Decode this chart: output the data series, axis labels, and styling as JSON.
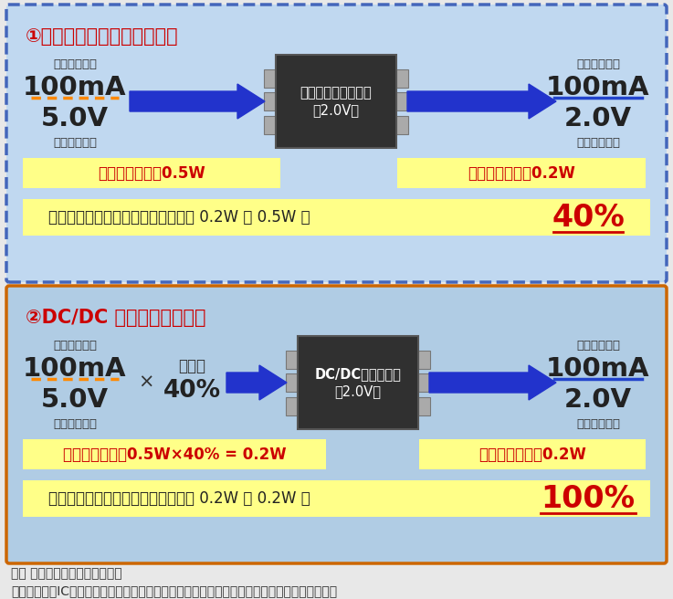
{
  "fig_width": 7.37,
  "fig_height": 6.56,
  "bg_color": "#e8e8e8",
  "panel1": {
    "title": "①リニアレギュレータの場合",
    "bg_color": "#c0d8f0",
    "border_color": "#4466bb",
    "input_current_label": "（入力電流）",
    "input_current_value": "100mA",
    "input_voltage_value": "5.0V",
    "input_voltage_label": "（入力電圧）",
    "output_current_label": "（出力電流）",
    "output_current_value": "100mA",
    "output_voltage_value": "2.0V",
    "output_voltage_label": "（出力電圧）",
    "device_label": "リニアレギュレータ",
    "device_sub": "（2.0V）",
    "power_in_label": "入力電力・・・0.5W",
    "power_out_label": "出力電力・・・0.2W",
    "efficiency_label": "効率は出力電力／入力電力・・・　 0.2W ／ 0.5W ＝ ",
    "efficiency_value": "40%",
    "yellow_bg": "#ffff88"
  },
  "panel2": {
    "title": "②DC/DC コンバータの場合",
    "bg_color": "#b0cce4",
    "border_color": "#cc6600",
    "input_current_label": "（入力電流）",
    "input_current_value": "100mA",
    "input_voltage_value": "5.0V",
    "input_voltage_label": "（入力電圧）",
    "duty_label": "時比率",
    "duty_value": "40%",
    "output_current_label": "（出力電流）",
    "output_current_value": "100mA",
    "output_voltage_value": "2.0V",
    "output_voltage_label": "（出力電圧）",
    "device_label": "DC/DCコンバータ",
    "device_sub": "（2.0V）",
    "power_in_label": "入力電力・・・0.5W×40% = 0.2W",
    "power_out_label": "出力電力・・・0.2W",
    "efficiency_label": "効率は出力電力／入力電力・・・　 0.2W ／ 0.2W ＝ ",
    "efficiency_value": "100%",
    "yellow_bg": "#ffff88"
  },
  "note1": "注） 上記の効率は理想値です。",
  "note2": "　　実際は、ICの自己消費電流、外付け部品の損失があるので上記数値よりは悪くなります。",
  "title_color": "#cc0000",
  "device_text_color": "#ffffff",
  "device_bg_color": "#303030",
  "arrow_color": "#2233cc",
  "orange_line_color": "#ff8800",
  "blue_line_color": "#2244cc",
  "power_text_color": "#cc0000",
  "efficiency_value_color": "#cc0000",
  "pin_color": "#aaaaaa"
}
